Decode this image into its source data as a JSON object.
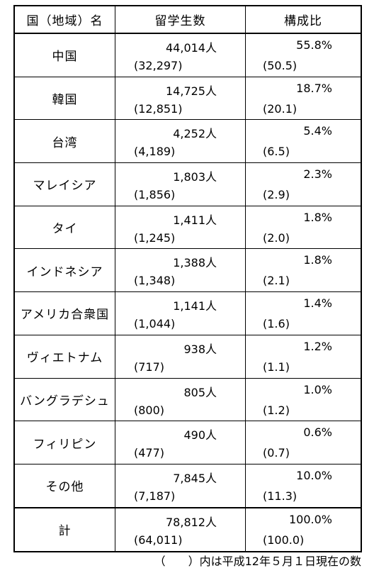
{
  "table": {
    "headers": [
      "国（地域）名",
      "留学生数",
      "構成比"
    ],
    "rows": [
      {
        "name": "中国",
        "count": "44,014人",
        "count_prev": "(32,297)",
        "ratio": "55.8%",
        "ratio_prev": "(50.5)"
      },
      {
        "name": "韓国",
        "count": "14,725人",
        "count_prev": "(12,851)",
        "ratio": "18.7%",
        "ratio_prev": "(20.1)"
      },
      {
        "name": "台湾",
        "count": "4,252人",
        "count_prev": "(4,189)",
        "ratio": "5.4%",
        "ratio_prev": "(6.5)"
      },
      {
        "name": "マレイシア",
        "count": "1,803人",
        "count_prev": "(1,856)",
        "ratio": "2.3%",
        "ratio_prev": "(2.9)"
      },
      {
        "name": "タイ",
        "count": "1,411人",
        "count_prev": "(1,245)",
        "ratio": "1.8%",
        "ratio_prev": "(2.0)"
      },
      {
        "name": "インドネシア",
        "count": "1,388人",
        "count_prev": "(1,348)",
        "ratio": "1.8%",
        "ratio_prev": "(2.1)"
      },
      {
        "name": "アメリカ合衆国",
        "count": "1,141人",
        "count_prev": "(1,044)",
        "ratio": "1.4%",
        "ratio_prev": "(1.6)"
      },
      {
        "name": "ヴィエトナム",
        "count": "938人",
        "count_prev": "(717)",
        "ratio": "1.2%",
        "ratio_prev": "(1.1)"
      },
      {
        "name": "バングラデシュ",
        "count": "805人",
        "count_prev": "(800)",
        "ratio": "1.0%",
        "ratio_prev": "(1.2)"
      },
      {
        "name": "フィリピン",
        "count": "490人",
        "count_prev": "(477)",
        "ratio": "0.6%",
        "ratio_prev": "(0.7)"
      },
      {
        "name": "その他",
        "count": "7,845人",
        "count_prev": "(7,187)",
        "ratio": "10.0%",
        "ratio_prev": "(11.3)"
      }
    ],
    "total": {
      "name": "計",
      "count": "78,812人",
      "count_prev": "(64,011)",
      "ratio": "100.0%",
      "ratio_prev": "(100.0)"
    }
  },
  "footnote": "（　　）内は平成12年５月１日現在の数"
}
